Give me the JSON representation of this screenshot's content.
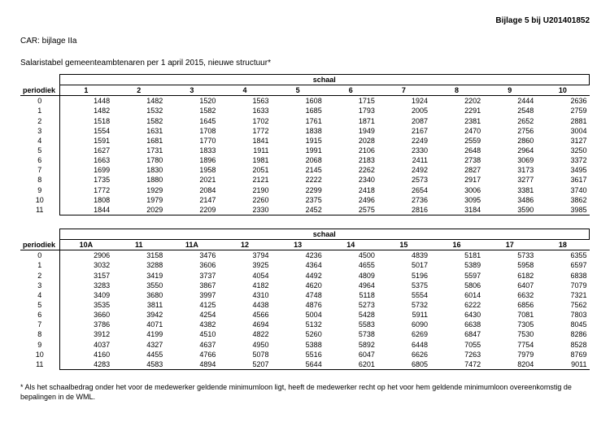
{
  "header_right": "Bijlage 5 bij U201401852",
  "header_left": "CAR: bijlage IIa",
  "subtitle": "Salaristabel gemeenteambtenaren per 1 april 2015, nieuwe structuur*",
  "schaal_label": "schaal",
  "periodiek_label": "periodiek",
  "table1": {
    "scales": [
      "1",
      "2",
      "3",
      "4",
      "5",
      "6",
      "7",
      "8",
      "9",
      "10"
    ],
    "periods": [
      "0",
      "1",
      "2",
      "3",
      "4",
      "5",
      "6",
      "7",
      "8",
      "9",
      "10",
      "11"
    ],
    "rows": [
      [
        1448,
        1482,
        1520,
        1563,
        1608,
        1715,
        1924,
        2202,
        2444,
        2636
      ],
      [
        1482,
        1532,
        1582,
        1633,
        1685,
        1793,
        2005,
        2291,
        2548,
        2759
      ],
      [
        1518,
        1582,
        1645,
        1702,
        1761,
        1871,
        2087,
        2381,
        2652,
        2881
      ],
      [
        1554,
        1631,
        1708,
        1772,
        1838,
        1949,
        2167,
        2470,
        2756,
        3004
      ],
      [
        1591,
        1681,
        1770,
        1841,
        1915,
        2028,
        2249,
        2559,
        2860,
        3127
      ],
      [
        1627,
        1731,
        1833,
        1911,
        1991,
        2106,
        2330,
        2648,
        2964,
        3250
      ],
      [
        1663,
        1780,
        1896,
        1981,
        2068,
        2183,
        2411,
        2738,
        3069,
        3372
      ],
      [
        1699,
        1830,
        1958,
        2051,
        2145,
        2262,
        2492,
        2827,
        3173,
        3495
      ],
      [
        1735,
        1880,
        2021,
        2121,
        2222,
        2340,
        2573,
        2917,
        3277,
        3617
      ],
      [
        1772,
        1929,
        2084,
        2190,
        2299,
        2418,
        2654,
        3006,
        3381,
        3740
      ],
      [
        1808,
        1979,
        2147,
        2260,
        2375,
        2496,
        2736,
        3095,
        3486,
        3862
      ],
      [
        1844,
        2029,
        2209,
        2330,
        2452,
        2575,
        2816,
        3184,
        3590,
        3985
      ]
    ]
  },
  "table2": {
    "scales": [
      "10A",
      "11",
      "11A",
      "12",
      "13",
      "14",
      "15",
      "16",
      "17",
      "18"
    ],
    "periods": [
      "0",
      "1",
      "2",
      "3",
      "4",
      "5",
      "6",
      "7",
      "8",
      "9",
      "10",
      "11"
    ],
    "rows": [
      [
        2906,
        3158,
        3476,
        3794,
        4236,
        4500,
        4839,
        5181,
        5733,
        6355
      ],
      [
        3032,
        3288,
        3606,
        3925,
        4364,
        4655,
        5017,
        5389,
        5958,
        6597
      ],
      [
        3157,
        3419,
        3737,
        4054,
        4492,
        4809,
        5196,
        5597,
        6182,
        6838
      ],
      [
        3283,
        3550,
        3867,
        4182,
        4620,
        4964,
        5375,
        5806,
        6407,
        7079
      ],
      [
        3409,
        3680,
        3997,
        4310,
        4748,
        5118,
        5554,
        6014,
        6632,
        7321
      ],
      [
        3535,
        3811,
        4125,
        4438,
        4876,
        5273,
        5732,
        6222,
        6856,
        7562
      ],
      [
        3660,
        3942,
        4254,
        4566,
        5004,
        5428,
        5911,
        6430,
        7081,
        7803
      ],
      [
        3786,
        4071,
        4382,
        4694,
        5132,
        5583,
        6090,
        6638,
        7305,
        8045
      ],
      [
        3912,
        4199,
        4510,
        4822,
        5260,
        5738,
        6269,
        6847,
        7530,
        8286
      ],
      [
        4037,
        4327,
        4637,
        4950,
        5388,
        5892,
        6448,
        7055,
        7754,
        8528
      ],
      [
        4160,
        4455,
        4766,
        5078,
        5516,
        6047,
        6626,
        7263,
        7979,
        8769
      ],
      [
        4283,
        4583,
        4894,
        5207,
        5644,
        6201,
        6805,
        7472,
        8204,
        9011
      ]
    ]
  },
  "footnote": "* Als het schaalbedrag onder het voor de medewerker geldende minimumloon ligt, heeft de medewerker recht op het voor hem geldende minimumloon overeenkomstig de bepalingen in de WML."
}
